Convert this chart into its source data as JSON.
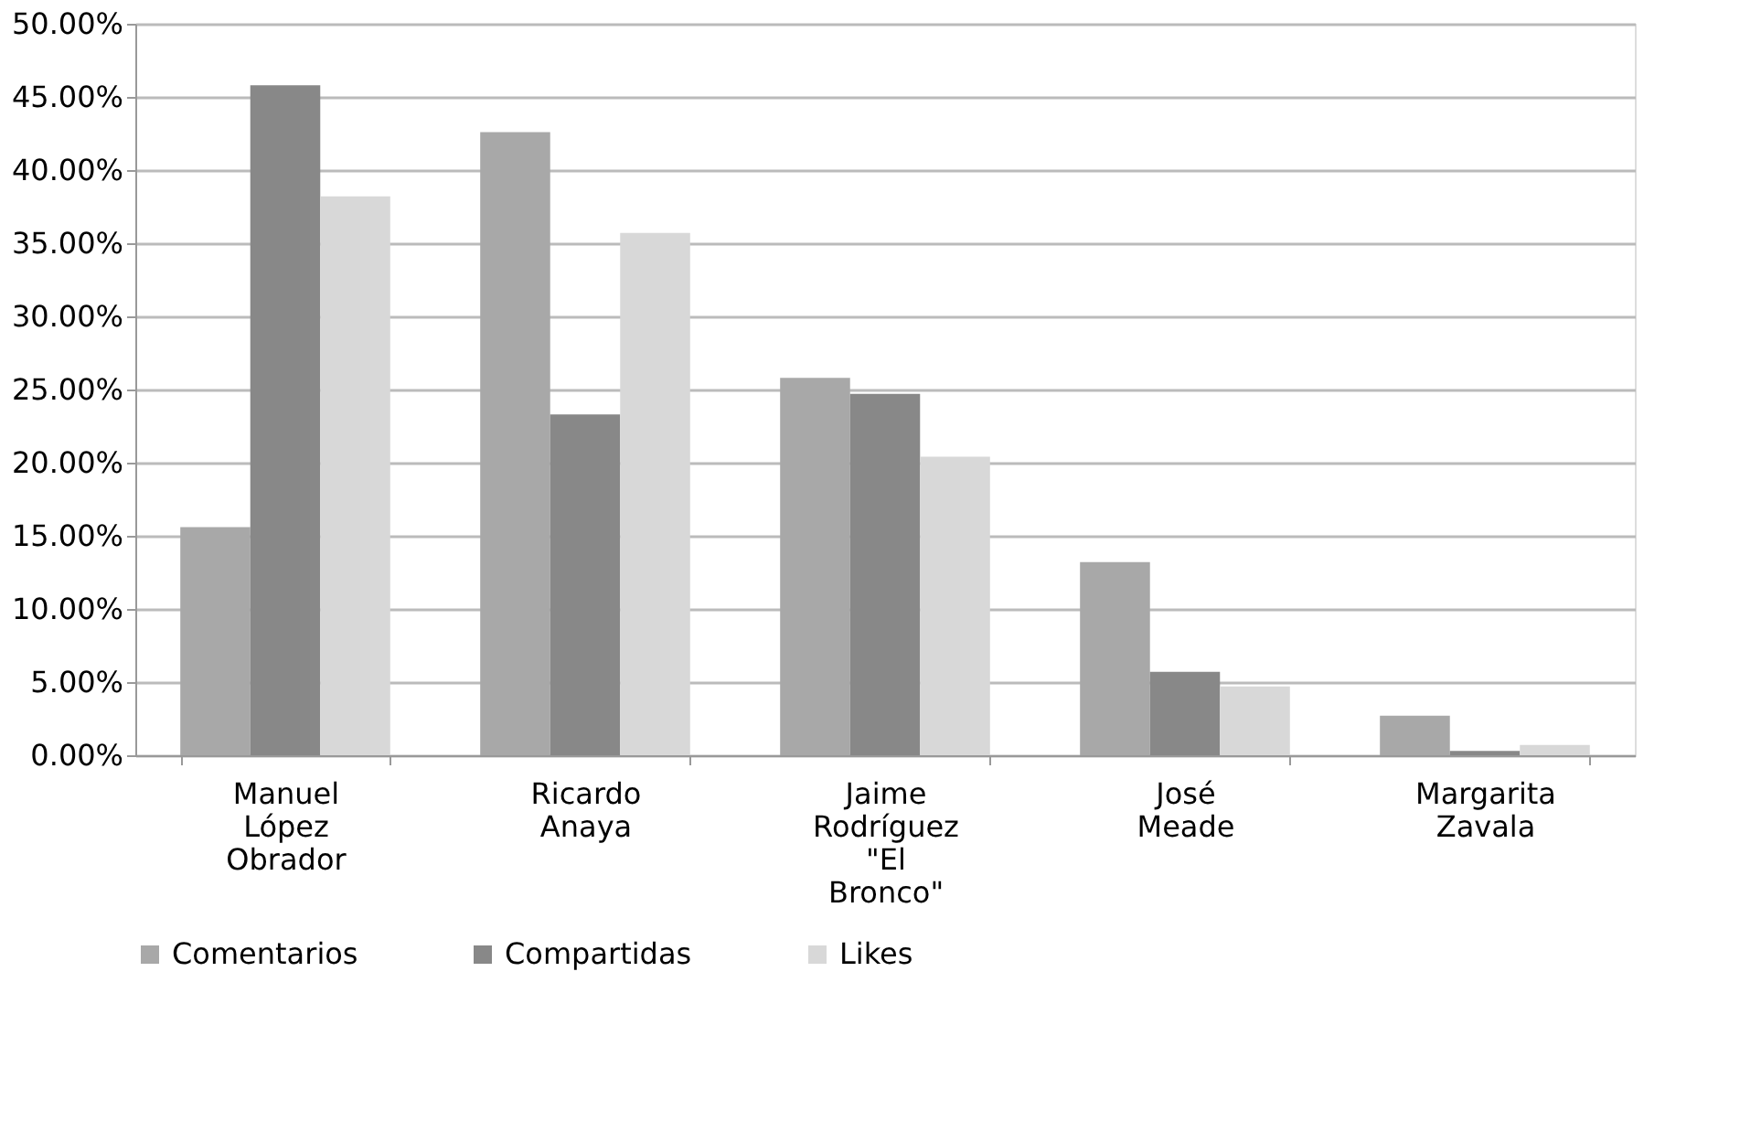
{
  "chart_data": {
    "type": "bar",
    "categories": [
      "Manuel López Obrador",
      "Ricardo Anaya",
      "Jaime Rodríguez \"El Bronco\"",
      "José Meade",
      "Margarita Zavala"
    ],
    "series": [
      {
        "name": "Comentarios",
        "color": "#a8a8a8",
        "values": [
          15.6,
          42.6,
          25.8,
          13.2,
          2.7
        ]
      },
      {
        "name": "Compartidas",
        "color": "#888888",
        "values": [
          45.8,
          23.3,
          24.7,
          5.7,
          0.3
        ]
      },
      {
        "name": "Likes",
        "color": "#d8d8d8",
        "values": [
          38.2,
          35.7,
          20.4,
          4.7,
          0.7
        ]
      }
    ],
    "ylim": [
      0,
      50
    ],
    "yticks": [
      {
        "value": 0,
        "label": "0.00%"
      },
      {
        "value": 5,
        "label": "5.00%"
      },
      {
        "value": 10,
        "label": "10.00%"
      },
      {
        "value": 15,
        "label": "15.00%"
      },
      {
        "value": 20,
        "label": "20.00%"
      },
      {
        "value": 25,
        "label": "25.00%"
      },
      {
        "value": 30,
        "label": "30.00%"
      },
      {
        "value": 35,
        "label": "35.00%"
      },
      {
        "value": 40,
        "label": "40.00%"
      },
      {
        "value": 45,
        "label": "45.00%"
      },
      {
        "value": 50,
        "label": "50.00%"
      }
    ],
    "grid": "y",
    "legend": "bottom"
  }
}
